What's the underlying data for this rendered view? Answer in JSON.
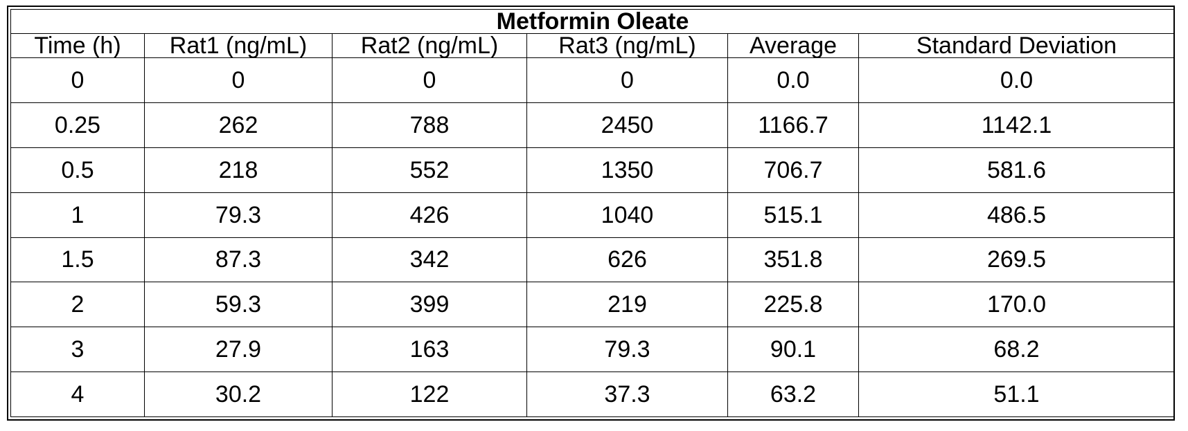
{
  "table": {
    "title": "Metformin Oleate",
    "headers": [
      "Time (h)",
      "Rat1 (ng/mL)",
      "Rat2 (ng/mL)",
      "Rat3 (ng/mL)",
      "Average",
      "Standard Deviation"
    ],
    "rows": [
      [
        "0",
        "0",
        "0",
        "0",
        "0.0",
        "0.0"
      ],
      [
        "0.25",
        "262",
        "788",
        "2450",
        "1166.7",
        "1142.1"
      ],
      [
        "0.5",
        "218",
        "552",
        "1350",
        "706.7",
        "581.6"
      ],
      [
        "1",
        "79.3",
        "426",
        "1040",
        "515.1",
        "486.5"
      ],
      [
        "1.5",
        "87.3",
        "342",
        "626",
        "351.8",
        "269.5"
      ],
      [
        "2",
        "59.3",
        "399",
        "219",
        "225.8",
        "170.0"
      ],
      [
        "3",
        "27.9",
        "163",
        "79.3",
        "90.1",
        "68.2"
      ],
      [
        "4",
        "30.2",
        "122",
        "37.3",
        "63.2",
        "51.1"
      ]
    ]
  }
}
